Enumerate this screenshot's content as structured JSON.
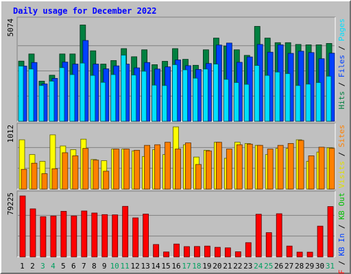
{
  "chart_data": [
    {
      "type": "bar",
      "panel": "hits-files-pages",
      "title": "Daily usage for December 2022",
      "categories": [
        "1",
        "2",
        "3",
        "4",
        "5",
        "6",
        "7",
        "8",
        "9",
        "10",
        "11",
        "12",
        "13",
        "14",
        "15",
        "16",
        "17",
        "18",
        "19",
        "20",
        "21",
        "22",
        "23",
        "24",
        "25",
        "26",
        "27",
        "28",
        "29",
        "30",
        "31"
      ],
      "weekend_days": [
        "3",
        "4",
        "10",
        "11",
        "17",
        "18",
        "24",
        "25",
        "31"
      ],
      "ymax_label": "5074",
      "ylim": [
        0,
        5074
      ],
      "grid": true,
      "series": [
        {
          "name": "Hits",
          "color": "#008040",
          "values": [
            3030,
            3390,
            2020,
            2320,
            3390,
            3390,
            4850,
            3550,
            2880,
            3060,
            3660,
            3250,
            3600,
            2850,
            3020,
            3660,
            3120,
            2820,
            3600,
            4190,
            3790,
            3600,
            3320,
            4780,
            4190,
            3960,
            3960,
            3870,
            3850,
            3850,
            3920
          ]
        },
        {
          "name": "Files",
          "color": "#0040ff",
          "values": [
            2780,
            2960,
            1880,
            2160,
            2980,
            2880,
            4070,
            2880,
            2640,
            2790,
            2880,
            2690,
            2960,
            2630,
            2740,
            3090,
            2800,
            2610,
            2910,
            3840,
            3940,
            2970,
            3240,
            3870,
            3480,
            3850,
            3420,
            3530,
            3460,
            3150,
            3430
          ]
        },
        {
          "name": "Pages",
          "color": "#00e0ff",
          "values": [
            2780,
            2630,
            1800,
            2020,
            2700,
            2350,
            2930,
            2310,
            1960,
            2350,
            3330,
            2330,
            2520,
            1820,
            1800,
            2850,
            2590,
            2170,
            2630,
            2880,
            2110,
            1950,
            1860,
            2810,
            2310,
            2480,
            2400,
            1800,
            1870,
            1950,
            2270
          ]
        }
      ]
    },
    {
      "type": "bar",
      "panel": "visits-sites",
      "categories": [
        "1",
        "2",
        "3",
        "4",
        "5",
        "6",
        "7",
        "8",
        "9",
        "10",
        "11",
        "12",
        "13",
        "14",
        "15",
        "16",
        "17",
        "18",
        "19",
        "20",
        "21",
        "22",
        "23",
        "24",
        "25",
        "26",
        "27",
        "28",
        "29",
        "30",
        "31"
      ],
      "ymax_label": "1012",
      "ylim": [
        0,
        1012
      ],
      "series": [
        {
          "name": "Visits",
          "color": "#ffff00",
          "values": [
            800,
            560,
            450,
            880,
            700,
            640,
            810,
            480,
            460,
            650,
            650,
            620,
            530,
            640,
            560,
            1010,
            720,
            520,
            630,
            760,
            500,
            760,
            740,
            710,
            560,
            660,
            660,
            800,
            450,
            600,
            670
          ]
        },
        {
          "name": "Sites",
          "color": "#ff8000",
          "values": [
            320,
            420,
            250,
            330,
            590,
            540,
            660,
            470,
            290,
            650,
            650,
            630,
            710,
            720,
            760,
            650,
            750,
            400,
            620,
            760,
            650,
            720,
            730,
            710,
            650,
            710,
            740,
            790,
            540,
            680,
            660
          ]
        }
      ]
    },
    {
      "type": "bar",
      "panel": "kbytes",
      "categories": [
        "1",
        "2",
        "3",
        "4",
        "5",
        "6",
        "7",
        "8",
        "9",
        "10",
        "11",
        "12",
        "13",
        "14",
        "15",
        "16",
        "17",
        "18",
        "19",
        "20",
        "21",
        "22",
        "23",
        "24",
        "25",
        "26",
        "27",
        "28",
        "29",
        "30",
        "31"
      ],
      "ymax_label": "79225",
      "ylim": [
        0,
        79225
      ],
      "legend": [
        {
          "text": "KB F",
          "color": "#ff0000"
        },
        {
          "text": "KB In",
          "color": "#0040ff"
        },
        {
          "text": "KB Out",
          "color": "#00c000"
        }
      ],
      "series": [
        {
          "name": "KB F",
          "color": "#ff0000",
          "values": [
            77470,
            61030,
            51100,
            51970,
            57910,
            52050,
            58340,
            55760,
            53750,
            53410,
            64240,
            49590,
            54460,
            15740,
            6280,
            16350,
            13060,
            13240,
            13750,
            12150,
            11490,
            6530,
            18120,
            54210,
            30820,
            54870,
            13770,
            6070,
            6020,
            39080,
            63950
          ]
        }
      ]
    }
  ]
}
